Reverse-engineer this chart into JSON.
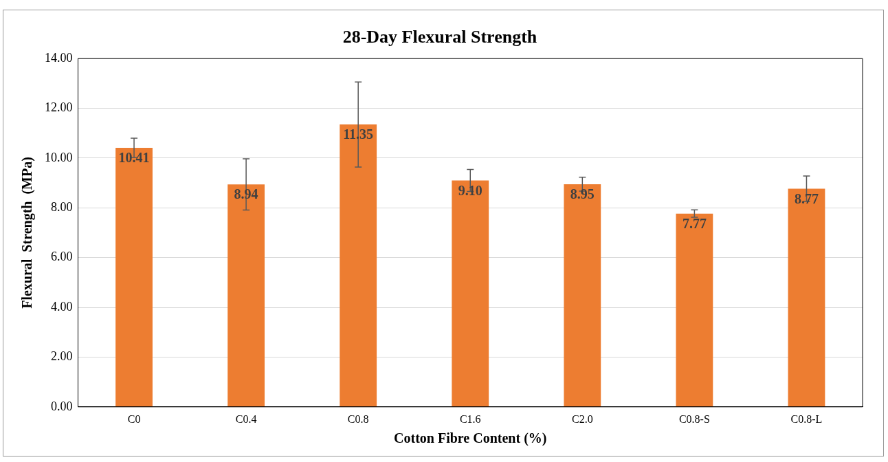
{
  "chart_data": {
    "type": "bar",
    "title": "28-Day Flexural Strength",
    "xlabel": "Cotton Fibre Content (%)",
    "ylabel": "Flexural  Strength  (MPa)",
    "categories": [
      "C0",
      "C0.4",
      "C0.8",
      "C1.6",
      "C2.0",
      "C0.8-S",
      "C0.8-L"
    ],
    "values": [
      10.41,
      8.94,
      11.35,
      9.1,
      8.95,
      7.77,
      8.77
    ],
    "value_labels": [
      "10.41",
      "8.94",
      "11.35",
      "9.10",
      "8.95",
      "7.77",
      "8.77"
    ],
    "errors": [
      0.39,
      1.03,
      1.71,
      0.44,
      0.28,
      0.15,
      0.51
    ],
    "color": "#ed7d31",
    "ylim": [
      0,
      14
    ],
    "yticks": [
      {
        "value": 0,
        "label": "0.00"
      },
      {
        "value": 2,
        "label": "2.00"
      },
      {
        "value": 4,
        "label": "4.00"
      },
      {
        "value": 6,
        "label": "6.00"
      },
      {
        "value": 8,
        "label": "8.00"
      },
      {
        "value": 10,
        "label": "10.00"
      },
      {
        "value": 12,
        "label": "12.00"
      },
      {
        "value": 14,
        "label": "14.00"
      }
    ],
    "grid": "y",
    "legend": false
  }
}
